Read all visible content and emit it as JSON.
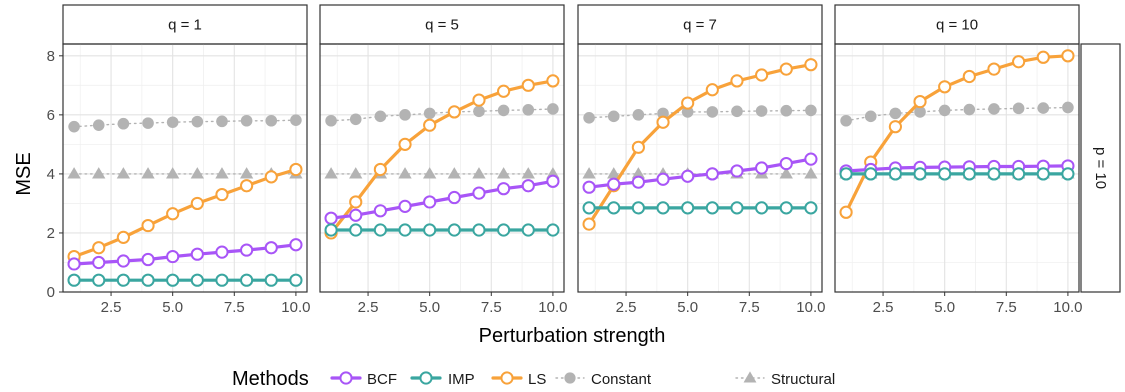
{
  "chart_data": {
    "type": "line",
    "xlabel": "Perturbation strength",
    "ylabel": "MSE",
    "xlim": [
      0.55,
      10.45
    ],
    "ylim": [
      0,
      8.4
    ],
    "x_ticks": [
      2.5,
      5.0,
      7.5,
      10.0
    ],
    "x_tick_labels": [
      "2.5",
      "5.0",
      "7.5",
      "10.0"
    ],
    "y_ticks": [
      0,
      2,
      4,
      6,
      8
    ],
    "y_tick_labels": [
      "0",
      "2",
      "4",
      "6",
      "8"
    ],
    "row_strip": "p = 10",
    "grid": true,
    "legend": {
      "title": "Methods",
      "position": "bottom",
      "entries": [
        {
          "name": "BCF",
          "color": "#a855f7",
          "marker": "open-circle",
          "line": "solid"
        },
        {
          "name": "IMP",
          "color": "#3aa6a0",
          "marker": "open-circle",
          "line": "solid"
        },
        {
          "name": "LS",
          "color": "#f8a23a",
          "marker": "open-circle",
          "line": "solid"
        },
        {
          "name": "Constant",
          "color": "#b3b3b3",
          "marker": "filled-circle",
          "line": "dotted"
        },
        {
          "name": "Structural",
          "color": "#b3b3b3",
          "marker": "filled-triangle",
          "line": "dotted"
        }
      ]
    },
    "x": [
      1,
      2,
      3,
      4,
      5,
      6,
      7,
      8,
      9,
      10
    ],
    "panels": [
      {
        "strip": "q = 1",
        "series": [
          {
            "name": "Constant",
            "values": [
              5.6,
              5.65,
              5.7,
              5.72,
              5.75,
              5.77,
              5.78,
              5.8,
              5.8,
              5.82
            ]
          },
          {
            "name": "Structural",
            "values": [
              4.0,
              4.0,
              4.0,
              4.0,
              4.0,
              4.0,
              4.0,
              4.0,
              4.0,
              4.0
            ]
          },
          {
            "name": "LS",
            "values": [
              1.2,
              1.5,
              1.85,
              2.25,
              2.65,
              3.0,
              3.3,
              3.6,
              3.9,
              4.15
            ]
          },
          {
            "name": "BCF",
            "values": [
              0.95,
              1.0,
              1.05,
              1.1,
              1.2,
              1.28,
              1.35,
              1.42,
              1.5,
              1.6
            ]
          },
          {
            "name": "IMP",
            "values": [
              0.4,
              0.4,
              0.4,
              0.4,
              0.4,
              0.4,
              0.4,
              0.4,
              0.4,
              0.4
            ]
          }
        ]
      },
      {
        "strip": "q = 5",
        "series": [
          {
            "name": "Constant",
            "values": [
              5.8,
              5.85,
              5.95,
              6.0,
              6.05,
              6.1,
              6.12,
              6.15,
              6.17,
              6.2
            ]
          },
          {
            "name": "Structural",
            "values": [
              4.0,
              4.0,
              4.0,
              4.0,
              4.0,
              4.0,
              4.0,
              4.0,
              4.0,
              4.0
            ]
          },
          {
            "name": "LS",
            "values": [
              2.0,
              3.05,
              4.15,
              5.0,
              5.65,
              6.1,
              6.5,
              6.8,
              7.0,
              7.15
            ]
          },
          {
            "name": "BCF",
            "values": [
              2.5,
              2.6,
              2.75,
              2.9,
              3.05,
              3.2,
              3.35,
              3.5,
              3.6,
              3.75
            ]
          },
          {
            "name": "IMP",
            "values": [
              2.1,
              2.1,
              2.1,
              2.1,
              2.1,
              2.1,
              2.1,
              2.1,
              2.1,
              2.1
            ]
          }
        ]
      },
      {
        "strip": "q = 7",
        "series": [
          {
            "name": "Constant",
            "values": [
              5.9,
              5.95,
              6.0,
              6.05,
              6.1,
              6.1,
              6.12,
              6.13,
              6.14,
              6.15
            ]
          },
          {
            "name": "Structural",
            "values": [
              4.0,
              4.0,
              4.0,
              4.0,
              4.0,
              4.0,
              4.0,
              4.0,
              4.0,
              4.0
            ]
          },
          {
            "name": "LS",
            "values": [
              2.3,
              3.6,
              4.9,
              5.75,
              6.4,
              6.85,
              7.15,
              7.35,
              7.55,
              7.7
            ]
          },
          {
            "name": "BCF",
            "values": [
              3.55,
              3.65,
              3.72,
              3.82,
              3.92,
              4.0,
              4.1,
              4.2,
              4.35,
              4.5
            ]
          },
          {
            "name": "IMP",
            "values": [
              2.85,
              2.85,
              2.85,
              2.85,
              2.85,
              2.85,
              2.85,
              2.85,
              2.85,
              2.85
            ]
          }
        ]
      },
      {
        "strip": "q = 10",
        "series": [
          {
            "name": "Constant",
            "values": [
              5.8,
              5.95,
              6.05,
              6.1,
              6.15,
              6.18,
              6.2,
              6.22,
              6.23,
              6.25
            ]
          },
          {
            "name": "Structural",
            "values": [
              4.0,
              4.0,
              4.0,
              4.0,
              4.0,
              4.0,
              4.0,
              4.0,
              4.0,
              4.0
            ]
          },
          {
            "name": "LS",
            "values": [
              2.7,
              4.4,
              5.6,
              6.45,
              6.95,
              7.3,
              7.55,
              7.8,
              7.95,
              8.0
            ]
          },
          {
            "name": "BCF",
            "values": [
              4.1,
              4.15,
              4.2,
              4.22,
              4.23,
              4.24,
              4.25,
              4.25,
              4.26,
              4.27
            ]
          },
          {
            "name": "IMP",
            "values": [
              4.0,
              4.0,
              4.0,
              4.0,
              4.0,
              4.0,
              4.0,
              4.0,
              4.0,
              4.0
            ]
          }
        ]
      }
    ]
  }
}
